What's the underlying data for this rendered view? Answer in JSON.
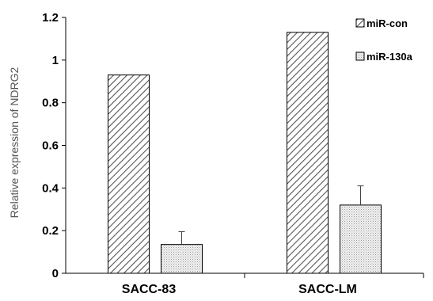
{
  "chart_data": {
    "type": "bar",
    "title": "",
    "xlabel": "",
    "ylabel": "Relative expression of NDRG2",
    "categories": [
      "SACC-83",
      "SACC-LM"
    ],
    "series": [
      {
        "name": "miR-con",
        "values": [
          0.93,
          1.13
        ],
        "errors": [
          0,
          0
        ],
        "pattern": "diagonal-hatch"
      },
      {
        "name": "miR-130a",
        "values": [
          0.135,
          0.32
        ],
        "errors": [
          0.06,
          0.09
        ],
        "pattern": "dotted"
      }
    ],
    "ylim": [
      0,
      1.2
    ],
    "yticks": [
      0,
      0.2,
      0.4,
      0.6,
      0.8,
      1,
      1.2
    ],
    "ytick_labels": [
      "0",
      "0.2",
      "0.4",
      "0.6",
      "0.8",
      "1",
      "1.2"
    ],
    "legend_position": "top-right",
    "grid": false
  }
}
